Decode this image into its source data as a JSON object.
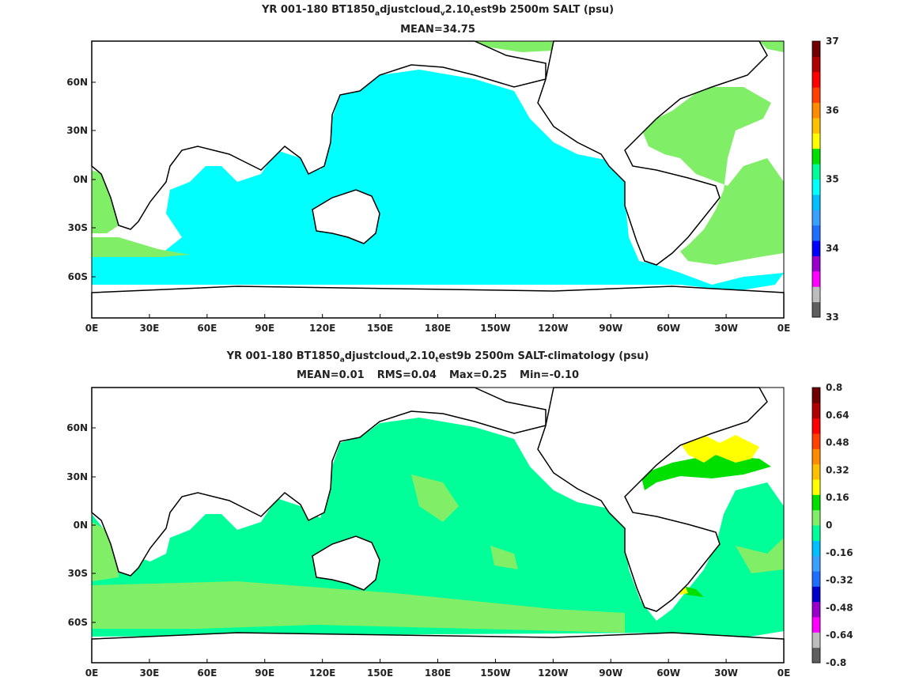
{
  "panel1": {
    "title_parts": {
      "a": "YR 001-180 BT1850",
      "b": "a",
      "c": "djustcloud",
      "d": "v",
      "e": "2.10",
      "f": "t",
      "g": "est9b 2500m SALT (psu)"
    },
    "stats": {
      "mean": "MEAN=34.75"
    },
    "colorbar": {
      "labels": [
        "37",
        "36",
        "35",
        "34",
        "33"
      ],
      "colors": [
        "#5e5e5e",
        "#bdbdbd",
        "#ff00ff",
        "#9900cc",
        "#0000ff",
        "#1e6fff",
        "#3aa0ff",
        "#00bfff",
        "#00ffff",
        "#00ff99",
        "#00e000",
        "#ffff00",
        "#ffc000",
        "#ff8c00",
        "#ff4000",
        "#ff0000",
        "#b00000",
        "#700000"
      ]
    },
    "ocean_color": "#00ffff",
    "atlantic_color": "#80ee66"
  },
  "panel2": {
    "title_parts": {
      "a": "YR 001-180 BT1850",
      "b": "a",
      "c": "djustcloud",
      "d": "v",
      "e": "2.10",
      "f": "t",
      "g": "est9b 2500m SALT-climatology (psu)"
    },
    "stats": {
      "mean": "MEAN=0.01",
      "rms": "RMS=0.04",
      "max": "Max=0.25",
      "min": "Min=-0.10"
    },
    "colorbar": {
      "labels": [
        "0.8",
        "0.64",
        "0.48",
        "0.32",
        "0.16",
        "0",
        "-0.16",
        "-0.32",
        "-0.48",
        "-0.64",
        "-0.8"
      ],
      "colors": [
        "#5e5e5e",
        "#bdbdbd",
        "#ff00ff",
        "#9900cc",
        "#0000cc",
        "#1e6fff",
        "#3aa0ff",
        "#00bfff",
        "#00ff99",
        "#80ee66",
        "#00e000",
        "#ffff00",
        "#ffc000",
        "#ff8c00",
        "#ff4000",
        "#ff0000",
        "#b00000",
        "#700000"
      ]
    },
    "ocean_color": "#00ff99",
    "pale_color": "#80ee66"
  },
  "axes": {
    "xticks": [
      "0E",
      "30E",
      "60E",
      "90E",
      "120E",
      "150E",
      "180E",
      "150W",
      "120W",
      "90W",
      "60W",
      "30W",
      "0E"
    ],
    "yticks": [
      "60N",
      "30N",
      "0N",
      "30S",
      "60S"
    ]
  }
}
